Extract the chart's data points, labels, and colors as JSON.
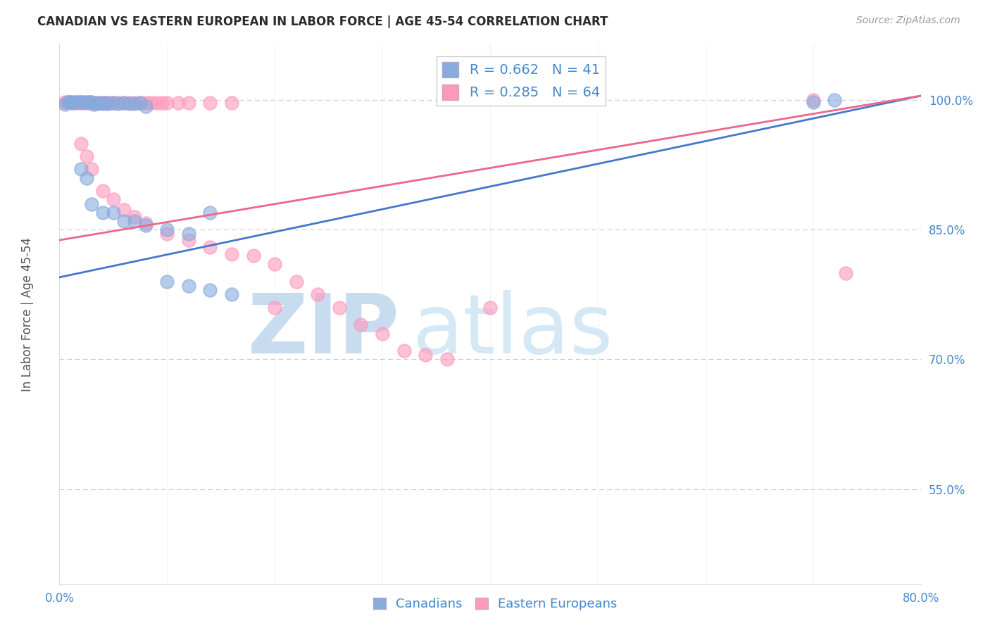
{
  "title": "CANADIAN VS EASTERN EUROPEAN IN LABOR FORCE | AGE 45-54 CORRELATION CHART",
  "source": "Source: ZipAtlas.com",
  "ylabel": "In Labor Force | Age 45-54",
  "legend_r_n_blue": {
    "R": 0.662,
    "N": 41
  },
  "legend_r_n_pink": {
    "R": 0.285,
    "N": 64
  },
  "blue_color": "#88AADD",
  "pink_color": "#FF99BB",
  "blue_line_color": "#4477CC",
  "pink_line_color": "#EE6688",
  "title_color": "#2B2B2B",
  "axis_color": "#4488CC",
  "grid_color": "#CCCCCC",
  "source_color": "#999999",
  "watermark_zip_color": "#C8DCF0",
  "watermark_atlas_color": "#D5E8F5",
  "xlim": [
    0.0,
    0.8
  ],
  "ylim": [
    0.44,
    1.065
  ],
  "y_ticks": [
    1.0,
    0.85,
    0.7,
    0.55
  ],
  "y_tick_labels": [
    "100.0%",
    "85.0%",
    "70.0%",
    "55.0%"
  ],
  "blue_line_x0": 0.0,
  "blue_line_y0": 0.795,
  "blue_line_x1": 0.8,
  "blue_line_y1": 1.005,
  "pink_line_x0": 0.0,
  "pink_line_y0": 0.838,
  "pink_line_x1": 0.8,
  "pink_line_y1": 1.005,
  "blue_x": [
    0.005,
    0.008,
    0.01,
    0.012,
    0.015,
    0.018,
    0.02,
    0.022,
    0.025,
    0.028,
    0.03,
    0.032,
    0.035,
    0.038,
    0.04,
    0.042,
    0.045,
    0.05,
    0.055,
    0.06,
    0.065,
    0.07,
    0.075,
    0.08,
    0.02,
    0.025,
    0.03,
    0.04,
    0.05,
    0.06,
    0.07,
    0.08,
    0.1,
    0.12,
    0.14,
    0.1,
    0.12,
    0.14,
    0.16,
    0.7,
    0.72
  ],
  "blue_y": [
    0.995,
    0.998,
    0.998,
    0.997,
    0.998,
    0.998,
    0.998,
    0.998,
    0.998,
    0.998,
    0.998,
    0.995,
    0.996,
    0.997,
    0.996,
    0.997,
    0.996,
    0.997,
    0.996,
    0.997,
    0.996,
    0.996,
    0.997,
    0.993,
    0.92,
    0.91,
    0.88,
    0.87,
    0.87,
    0.86,
    0.86,
    0.855,
    0.85,
    0.845,
    0.87,
    0.79,
    0.785,
    0.78,
    0.775,
    0.998,
    1.0
  ],
  "pink_x": [
    0.005,
    0.007,
    0.009,
    0.01,
    0.012,
    0.013,
    0.015,
    0.016,
    0.018,
    0.02,
    0.022,
    0.023,
    0.025,
    0.026,
    0.028,
    0.03,
    0.032,
    0.035,
    0.037,
    0.04,
    0.042,
    0.045,
    0.048,
    0.05,
    0.055,
    0.06,
    0.065,
    0.07,
    0.075,
    0.08,
    0.085,
    0.09,
    0.095,
    0.1,
    0.11,
    0.12,
    0.14,
    0.16,
    0.02,
    0.025,
    0.03,
    0.04,
    0.05,
    0.06,
    0.07,
    0.08,
    0.1,
    0.12,
    0.14,
    0.16,
    0.18,
    0.2,
    0.22,
    0.24,
    0.26,
    0.28,
    0.3,
    0.32,
    0.34,
    0.36,
    0.2,
    0.4,
    0.7,
    0.73
  ],
  "pink_y": [
    0.998,
    0.998,
    0.998,
    0.998,
    0.997,
    0.998,
    0.997,
    0.998,
    0.997,
    0.998,
    0.997,
    0.997,
    0.997,
    0.998,
    0.997,
    0.997,
    0.997,
    0.997,
    0.997,
    0.997,
    0.997,
    0.997,
    0.997,
    0.997,
    0.997,
    0.997,
    0.997,
    0.997,
    0.997,
    0.997,
    0.997,
    0.997,
    0.997,
    0.997,
    0.997,
    0.997,
    0.997,
    0.997,
    0.95,
    0.935,
    0.92,
    0.895,
    0.885,
    0.873,
    0.865,
    0.858,
    0.845,
    0.838,
    0.83,
    0.822,
    0.82,
    0.81,
    0.79,
    0.775,
    0.76,
    0.74,
    0.73,
    0.71,
    0.705,
    0.7,
    0.76,
    0.76,
    1.0,
    0.8
  ],
  "dot_size": 180,
  "dot_alpha": 0.6
}
